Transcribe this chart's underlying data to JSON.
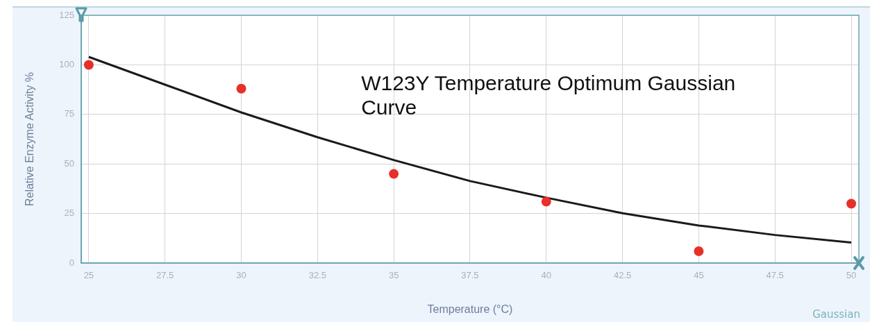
{
  "chart_data": {
    "type": "scatter",
    "title": "W123Y Temperature Optimum Gaussian Curve",
    "xlabel": "Temperature (°C)",
    "ylabel": "Relative Enzyme Activity %",
    "annotations": [
      "Gaussian"
    ],
    "x": [
      25,
      30,
      35,
      40,
      45,
      50
    ],
    "series": [
      {
        "color": "#e8302a",
        "marker": "circle",
        "values": [
          100,
          88,
          45,
          31,
          6,
          30
        ]
      },
      {
        "type": "line",
        "color": "#1a1a1a",
        "marker": "none",
        "line_style": "solid",
        "x": [
          25,
          27.5,
          30,
          32.5,
          35,
          37.5,
          40,
          42.5,
          45,
          47.5,
          50
        ],
        "values": [
          104,
          90,
          76,
          63.5,
          52,
          41.4,
          33,
          25.2,
          19,
          14.2,
          10.4
        ]
      }
    ],
    "xlim": [
      24.75,
      50.25
    ],
    "xticks": [
      25,
      27.5,
      30,
      32.5,
      35,
      37.5,
      40,
      42.5,
      45,
      47.5,
      50
    ],
    "ylim": [
      0,
      125
    ],
    "yticks": [
      0,
      25,
      50,
      75,
      100,
      125
    ],
    "grid": true,
    "legend": false
  }
}
